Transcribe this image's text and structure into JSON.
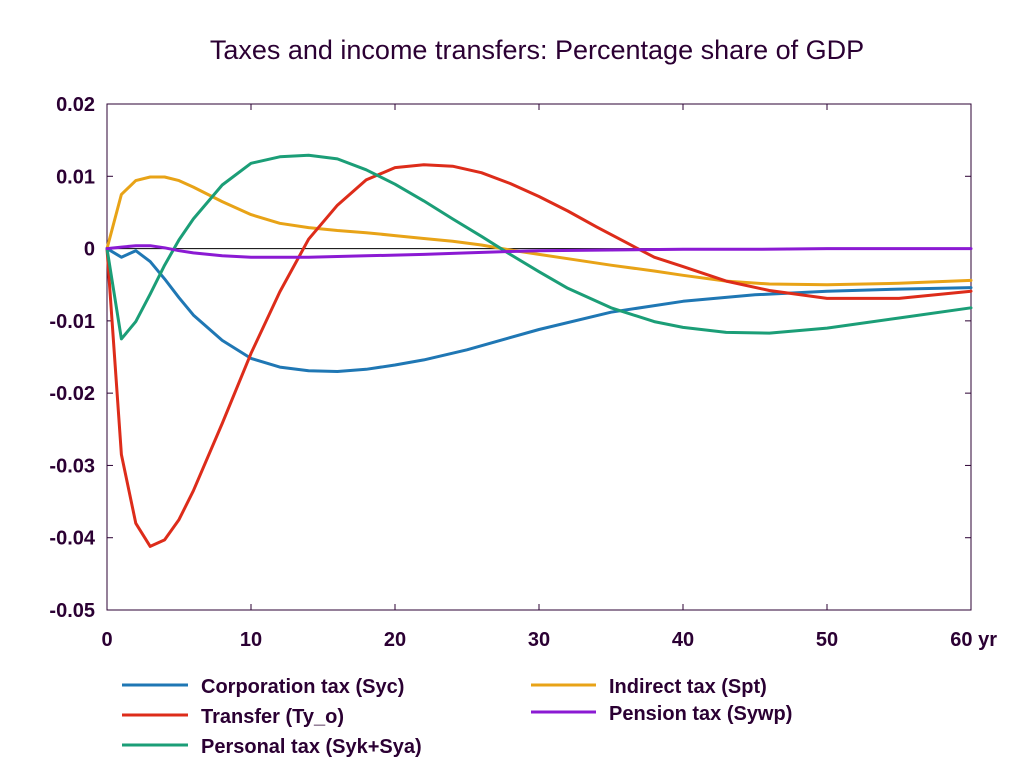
{
  "chart_data": {
    "type": "line",
    "title": "Taxes and income transfers: Percentage share of GDP",
    "xlabel": "",
    "ylabel": "",
    "xlim": [
      0,
      60
    ],
    "ylim": [
      -0.05,
      0.02
    ],
    "x_ticks": [
      {
        "value": 0,
        "label": "0"
      },
      {
        "value": 10,
        "label": "10"
      },
      {
        "value": 20,
        "label": "20"
      },
      {
        "value": 30,
        "label": "30"
      },
      {
        "value": 40,
        "label": "40"
      },
      {
        "value": 50,
        "label": "50"
      },
      {
        "value": 60,
        "label": "60 yr"
      }
    ],
    "y_ticks": [
      {
        "value": 0.02,
        "label": "0.02"
      },
      {
        "value": 0.01,
        "label": "0.01"
      },
      {
        "value": 0,
        "label": "0"
      },
      {
        "value": -0.01,
        "label": "-0.01"
      },
      {
        "value": -0.02,
        "label": "-0.02"
      },
      {
        "value": -0.03,
        "label": "-0.03"
      },
      {
        "value": -0.04,
        "label": "-0.04"
      },
      {
        "value": -0.05,
        "label": "-0.05"
      }
    ],
    "grid": false,
    "legend_position": "bottom",
    "series": [
      {
        "name": "Corporation tax (Syc)",
        "color": "#1f77b4",
        "x": [
          0,
          1,
          2,
          3,
          4,
          5,
          6,
          8,
          10,
          12,
          14,
          16,
          18,
          20,
          22,
          25,
          30,
          35,
          40,
          45,
          50,
          55,
          60
        ],
        "y": [
          0,
          -0.0012,
          -0.0003,
          -0.0018,
          -0.0042,
          -0.0068,
          -0.0092,
          -0.0127,
          -0.0152,
          -0.0164,
          -0.0169,
          -0.017,
          -0.0167,
          -0.0161,
          -0.0154,
          -0.014,
          -0.0112,
          -0.0088,
          -0.0073,
          -0.0064,
          -0.0059,
          -0.0056,
          -0.0054
        ]
      },
      {
        "name": "Transfer (Ty_o)",
        "color": "#dd2c1a",
        "x": [
          0,
          1,
          2,
          3,
          4,
          5,
          6,
          8,
          10,
          12,
          14,
          16,
          18,
          20,
          22,
          24,
          26,
          28,
          30,
          32,
          34,
          36,
          38,
          40,
          43,
          46,
          50,
          55,
          60
        ],
        "y": [
          0,
          -0.0285,
          -0.038,
          -0.0412,
          -0.0403,
          -0.0375,
          -0.0335,
          -0.0242,
          -0.0145,
          -0.006,
          0.0013,
          0.006,
          0.0095,
          0.0112,
          0.0116,
          0.0114,
          0.0105,
          0.009,
          0.0072,
          0.0052,
          0.003,
          0.0009,
          -0.0012,
          -0.0025,
          -0.0045,
          -0.0058,
          -0.0069,
          -0.0069,
          -0.0059
        ]
      },
      {
        "name": "Personal tax (Syk+Sya)",
        "color": "#1b9e77",
        "x": [
          0,
          1,
          2,
          3,
          4,
          5,
          6,
          8,
          10,
          12,
          14,
          16,
          18,
          20,
          22,
          24,
          26,
          28,
          30,
          32,
          35,
          38,
          40,
          43,
          46,
          50,
          55,
          60
        ],
        "y": [
          0,
          -0.0125,
          -0.0101,
          -0.0063,
          -0.0023,
          0.0012,
          0.0041,
          0.0088,
          0.0118,
          0.0127,
          0.0129,
          0.0124,
          0.0109,
          0.0089,
          0.0066,
          0.0041,
          0.0017,
          -0.0008,
          -0.0032,
          -0.0055,
          -0.0082,
          -0.0101,
          -0.0109,
          -0.0116,
          -0.0117,
          -0.011,
          -0.0096,
          -0.0082
        ]
      },
      {
        "name": "Indirect tax (Spt)",
        "color": "#e8a317",
        "x": [
          0,
          1,
          2,
          3,
          4,
          5,
          6,
          8,
          10,
          12,
          14,
          16,
          18,
          20,
          22,
          24,
          26,
          28,
          30,
          32,
          35,
          38,
          40,
          43,
          46,
          50,
          55,
          60
        ],
        "y": [
          0,
          0.0075,
          0.0094,
          0.0099,
          0.0099,
          0.0094,
          0.0085,
          0.0065,
          0.0047,
          0.0035,
          0.0029,
          0.0025,
          0.0022,
          0.0018,
          0.0014,
          0.001,
          0.0005,
          -0.0002,
          -0.0008,
          -0.0014,
          -0.0023,
          -0.0031,
          -0.0037,
          -0.0045,
          -0.0049,
          -0.005,
          -0.0048,
          -0.0044
        ]
      },
      {
        "name": "Pension tax (Sywp)",
        "color": "#8b1ad3",
        "x": [
          0,
          1,
          2,
          3,
          4,
          5,
          6,
          8,
          10,
          12,
          14,
          16,
          18,
          20,
          22,
          25,
          28,
          30,
          35,
          40,
          45,
          50,
          55,
          60
        ],
        "y": [
          0,
          0.0002,
          0.0004,
          0.0004,
          0.0001,
          -0.0003,
          -0.0006,
          -0.001,
          -0.0012,
          -0.0012,
          -0.0012,
          -0.0011,
          -0.001,
          -0.0009,
          -0.0008,
          -0.0006,
          -0.0004,
          -0.0003,
          -0.0002,
          -0.0001,
          -0.0001,
          0,
          0,
          0
        ]
      }
    ]
  }
}
